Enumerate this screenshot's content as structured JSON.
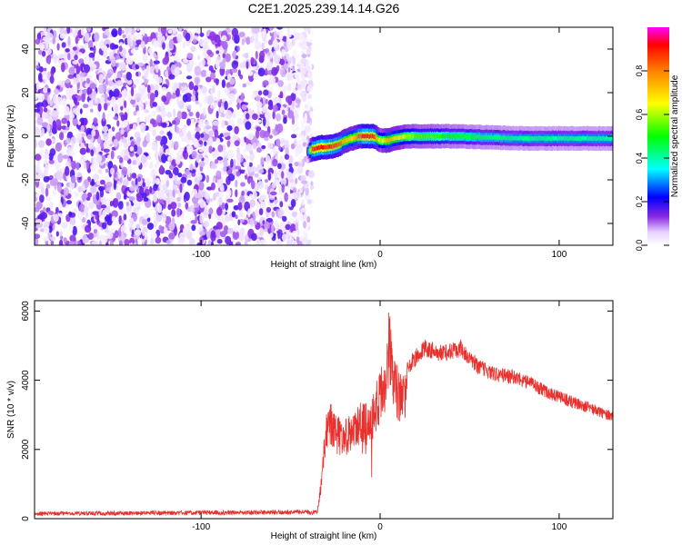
{
  "title": "C2E1.2025.239.14.14.G26",
  "chart_data": [
    {
      "type": "heatmap",
      "xlabel": "Height of straight line (km)",
      "ylabel": "Frequency (Hz)",
      "xlim": [
        -193,
        130
      ],
      "ylim": [
        -50,
        50
      ],
      "xticks": [
        -100,
        0,
        100
      ],
      "xtick_labels": [
        "-100",
        "0",
        "100"
      ],
      "yticks": [
        -40,
        -20,
        0,
        20,
        40
      ],
      "ytick_labels": [
        "-40",
        "-20",
        "0",
        "20",
        "40"
      ],
      "colorbar": {
        "label": "Normalized spectral amplitude",
        "range": [
          0,
          1
        ],
        "ticks": [
          0,
          0.2,
          0.4,
          0.6,
          0.8
        ],
        "tick_labels": [
          "0.0",
          "0.2",
          "0.4",
          "0.6",
          "0.8"
        ]
      },
      "noise_region_x": [
        -193,
        -42
      ],
      "signal_trace": {
        "x": [
          -41,
          -38,
          -33,
          -29,
          -24,
          -20,
          -16,
          -12,
          -8,
          -4,
          0,
          4,
          8,
          15,
          25,
          40,
          60,
          80,
          100,
          120,
          130
        ],
        "frequency": [
          -7,
          -6,
          -5,
          -5,
          -4,
          -2,
          -1,
          0,
          0,
          0,
          -2,
          -2,
          -1,
          0,
          0,
          0,
          -0.5,
          -1,
          -1,
          -1,
          -1
        ],
        "amplitude": [
          0.2,
          0.9,
          0.95,
          0.9,
          0.85,
          0.75,
          0.7,
          0.85,
          0.95,
          0.9,
          0.6,
          0.75,
          0.7,
          0.6,
          0.55,
          0.5,
          0.45,
          0.42,
          0.42,
          0.42,
          0.42
        ]
      }
    },
    {
      "type": "line",
      "xlabel": "Height of straight line (km)",
      "ylabel": "SNR (10 * v/v)",
      "xlim": [
        -193,
        130
      ],
      "ylim": [
        0,
        6300
      ],
      "xticks": [
        -100,
        0,
        100
      ],
      "xtick_labels": [
        "-100",
        "0",
        "100"
      ],
      "yticks": [
        0,
        2000,
        4000,
        6000
      ],
      "ytick_labels": [
        "0",
        "2000",
        "4000",
        "6000"
      ],
      "color": "#e8302c",
      "envelope": {
        "x": [
          -193,
          -35,
          -33,
          -30,
          -28,
          -25,
          -20,
          -15,
          -10,
          -5,
          0,
          3,
          5,
          8,
          12,
          18,
          25,
          35,
          45,
          55,
          65,
          75,
          85,
          95,
          105,
          115,
          125,
          130
        ],
        "y": [
          200,
          260,
          1200,
          3200,
          3400,
          3000,
          2900,
          3200,
          3400,
          3300,
          4500,
          4700,
          6100,
          4800,
          4200,
          4800,
          5200,
          5000,
          5200,
          4600,
          4400,
          4300,
          4100,
          3800,
          3600,
          3400,
          3200,
          3100
        ]
      }
    }
  ]
}
